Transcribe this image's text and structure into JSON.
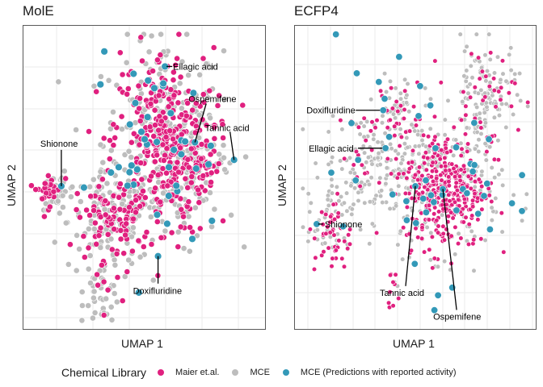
{
  "chart_data": [
    {
      "type": "scatter",
      "title": "MolE",
      "xlabel": "UMAP 1",
      "ylabel": "UMAP 2",
      "xlim": [
        0,
        100
      ],
      "ylim": [
        0,
        100
      ],
      "grid": true,
      "tick_labels_shown": false,
      "point_clusters": [
        {
          "series": "MCE",
          "cx": 58,
          "cy": 62,
          "sx": 13,
          "sy": 18,
          "n": 260
        },
        {
          "series": "Maier et.al.",
          "cx": 58,
          "cy": 62,
          "sx": 11,
          "sy": 16,
          "n": 300
        },
        {
          "series": "MCE",
          "cx": 72,
          "cy": 55,
          "sx": 7,
          "sy": 7,
          "n": 60
        },
        {
          "series": "Maier et.al.",
          "cx": 72,
          "cy": 55,
          "sx": 6,
          "sy": 6,
          "n": 50
        },
        {
          "series": "MCE",
          "cx": 35,
          "cy": 35,
          "sx": 9,
          "sy": 8,
          "n": 120
        },
        {
          "series": "Maier et.al.",
          "cx": 38,
          "cy": 36,
          "sx": 9,
          "sy": 7,
          "n": 90
        },
        {
          "series": "MCE",
          "cx": 32,
          "cy": 12,
          "sx": 4,
          "sy": 6,
          "n": 45
        },
        {
          "series": "Maier et.al.",
          "cx": 32,
          "cy": 14,
          "sx": 4,
          "sy": 6,
          "n": 10
        },
        {
          "series": "MCE",
          "cx": 13,
          "cy": 45,
          "sx": 4,
          "sy": 3,
          "n": 35
        },
        {
          "series": "Maier et.al.",
          "cx": 8,
          "cy": 46,
          "sx": 3,
          "sy": 3,
          "n": 30
        },
        {
          "series": "MCE",
          "cx": 58,
          "cy": 90,
          "sx": 1,
          "sy": 2,
          "n": 5
        },
        {
          "series": "MCE (Predictions with reported activity)",
          "cx": 55,
          "cy": 55,
          "sx": 14,
          "sy": 17,
          "n": 40
        }
      ],
      "labeled_points": [
        {
          "label": "Ellagic acid",
          "x": 59,
          "y": 88,
          "series": "MCE (Predictions with reported activity)"
        },
        {
          "label": "Ospemifene",
          "x": 72,
          "y": 62,
          "series": "MCE (Predictions with reported activity)"
        },
        {
          "label": "Tannic acid",
          "x": 89,
          "y": 56,
          "series": "MCE (Predictions with reported activity)"
        },
        {
          "label": "Shionone",
          "x": 14,
          "y": 47,
          "series": "MCE (Predictions with reported activity)"
        },
        {
          "label": "Doxifluridine",
          "x": 56,
          "y": 23,
          "series": "MCE (Predictions with reported activity)"
        }
      ]
    },
    {
      "type": "scatter",
      "title": "ECFP4",
      "xlabel": "UMAP 1",
      "ylabel": "UMAP 2",
      "xlim": [
        0,
        100
      ],
      "ylim": [
        0,
        100
      ],
      "grid": true,
      "tick_labels_shown": false,
      "point_clusters": [
        {
          "series": "MCE",
          "cx": 60,
          "cy": 48,
          "sx": 14,
          "sy": 12,
          "n": 260
        },
        {
          "series": "Maier et.al.",
          "cx": 63,
          "cy": 46,
          "sx": 9,
          "sy": 10,
          "n": 330
        },
        {
          "series": "MCE",
          "cx": 80,
          "cy": 78,
          "sx": 7,
          "sy": 9,
          "n": 110
        },
        {
          "series": "Maier et.al.",
          "cx": 78,
          "cy": 76,
          "sx": 8,
          "sy": 9,
          "n": 45
        },
        {
          "series": "MCE",
          "cx": 30,
          "cy": 55,
          "sx": 10,
          "sy": 9,
          "n": 120
        },
        {
          "series": "Maier et.al.",
          "cx": 35,
          "cy": 58,
          "sx": 10,
          "sy": 9,
          "n": 30
        },
        {
          "series": "MCE",
          "cx": 13,
          "cy": 35,
          "sx": 5,
          "sy": 7,
          "n": 50
        },
        {
          "series": "Maier et.al.",
          "cx": 14,
          "cy": 30,
          "sx": 4,
          "sy": 7,
          "n": 45
        },
        {
          "series": "MCE",
          "cx": 42,
          "cy": 75,
          "sx": 6,
          "sy": 5,
          "n": 30
        },
        {
          "series": "Maier et.al.",
          "cx": 42,
          "cy": 73,
          "sx": 4,
          "sy": 5,
          "n": 20
        },
        {
          "series": "Maier et.al.",
          "cx": 40,
          "cy": 10,
          "sx": 1.5,
          "sy": 4,
          "n": 10
        },
        {
          "series": "MCE (Predictions with reported activity)",
          "cx": 55,
          "cy": 50,
          "sx": 20,
          "sy": 18,
          "n": 45
        }
      ],
      "labeled_points": [
        {
          "label": "Doxifluridine",
          "x": 36,
          "y": 73,
          "series": "MCE (Predictions with reported activity)"
        },
        {
          "label": "Ellagic acid",
          "x": 37,
          "y": 60,
          "series": "MCE (Predictions with reported activity)"
        },
        {
          "label": "Tannic acid",
          "x": 50,
          "y": 47,
          "series": "MCE (Predictions with reported activity)"
        },
        {
          "label": "Ospemifene",
          "x": 62,
          "y": 46,
          "series": "MCE (Predictions with reported activity)"
        },
        {
          "label": "Shionone",
          "x": 7,
          "y": 34,
          "series": "MCE (Predictions with reported activity)"
        }
      ]
    }
  ],
  "legend": {
    "title": "Chemical Library",
    "placement": "bottom",
    "items": [
      {
        "label": "Maier et.al.",
        "color": "#e0207f"
      },
      {
        "label": "MCE",
        "color": "#bdbdbd"
      },
      {
        "label": "MCE (Predictions with reported activity)",
        "color": "#3399b8"
      }
    ]
  },
  "colors": {
    "Maier et.al.": "#e0207f",
    "MCE": "#bdbdbd",
    "MCE (Predictions with reported activity)": "#3399b8"
  }
}
